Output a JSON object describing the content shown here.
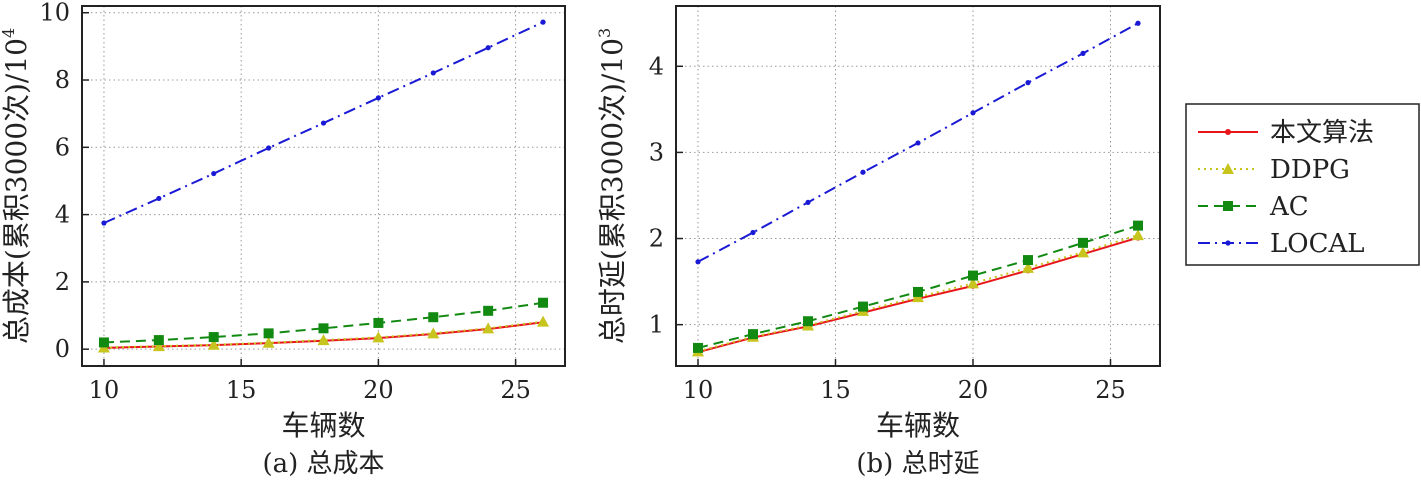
{
  "chart_data": [
    {
      "type": "line",
      "xlabel": "车辆数",
      "ylabel": "总成本(累积3000次)/10",
      "ylabel_exp": "4",
      "caption": "(a) 总成本",
      "xlim": [
        9.2,
        26.8
      ],
      "ylim": [
        -0.5,
        10.2
      ],
      "xticks": [
        10,
        15,
        20,
        25
      ],
      "yticks": [
        0,
        2,
        4,
        6,
        8,
        10
      ],
      "grid": true,
      "x": [
        10,
        12,
        14,
        16,
        18,
        20,
        22,
        24,
        26
      ],
      "series": [
        {
          "name": "本文算法",
          "color": "#e8161b",
          "dash": "",
          "marker": "dot",
          "values": [
            0.04,
            0.08,
            0.12,
            0.18,
            0.25,
            0.33,
            0.45,
            0.6,
            0.8
          ]
        },
        {
          "name": "DDPG",
          "color": "#c7c41e",
          "dash": "2 4",
          "marker": "triangle",
          "values": [
            0.05,
            0.09,
            0.13,
            0.19,
            0.27,
            0.35,
            0.47,
            0.62,
            0.82
          ]
        },
        {
          "name": "AC",
          "color": "#128a12",
          "dash": "10 6",
          "marker": "square",
          "values": [
            0.2,
            0.27,
            0.36,
            0.47,
            0.62,
            0.78,
            0.95,
            1.14,
            1.38
          ]
        },
        {
          "name": "LOCAL",
          "color": "#1a1ad6",
          "dash": "12 5 2 5",
          "marker": "star",
          "values": [
            3.75,
            4.48,
            5.22,
            5.98,
            6.72,
            7.47,
            8.21,
            8.96,
            9.72
          ]
        }
      ]
    },
    {
      "type": "line",
      "xlabel": "车辆数",
      "ylabel": "总时延(累积3000次)/10",
      "ylabel_exp": "3",
      "caption": "(b) 总时延",
      "xlim": [
        9.2,
        26.8
      ],
      "ylim": [
        0.52,
        4.7
      ],
      "xticks": [
        10,
        15,
        20,
        25
      ],
      "yticks": [
        1,
        2,
        3,
        4
      ],
      "grid": true,
      "x": [
        10,
        12,
        14,
        16,
        18,
        20,
        22,
        24,
        26
      ],
      "series": [
        {
          "name": "本文算法",
          "color": "#e8161b",
          "dash": "",
          "marker": "dot",
          "values": [
            0.68,
            0.85,
            0.98,
            1.14,
            1.3,
            1.45,
            1.63,
            1.82,
            2.01
          ]
        },
        {
          "name": "DDPG",
          "color": "#c7c41e",
          "dash": "2 4",
          "marker": "triangle",
          "values": [
            0.69,
            0.86,
            0.99,
            1.16,
            1.32,
            1.48,
            1.66,
            1.84,
            2.04
          ]
        },
        {
          "name": "AC",
          "color": "#128a12",
          "dash": "10 6",
          "marker": "square",
          "values": [
            0.73,
            0.89,
            1.04,
            1.21,
            1.38,
            1.57,
            1.75,
            1.95,
            2.15
          ]
        },
        {
          "name": "LOCAL",
          "color": "#1a1ad6",
          "dash": "12 5 2 5",
          "marker": "star",
          "values": [
            1.73,
            2.07,
            2.42,
            2.77,
            3.11,
            3.46,
            3.81,
            4.15,
            4.5
          ]
        }
      ]
    }
  ],
  "legend": {
    "placement": "right",
    "items": [
      "本文算法",
      "DDPG",
      "AC",
      "LOCAL"
    ]
  }
}
